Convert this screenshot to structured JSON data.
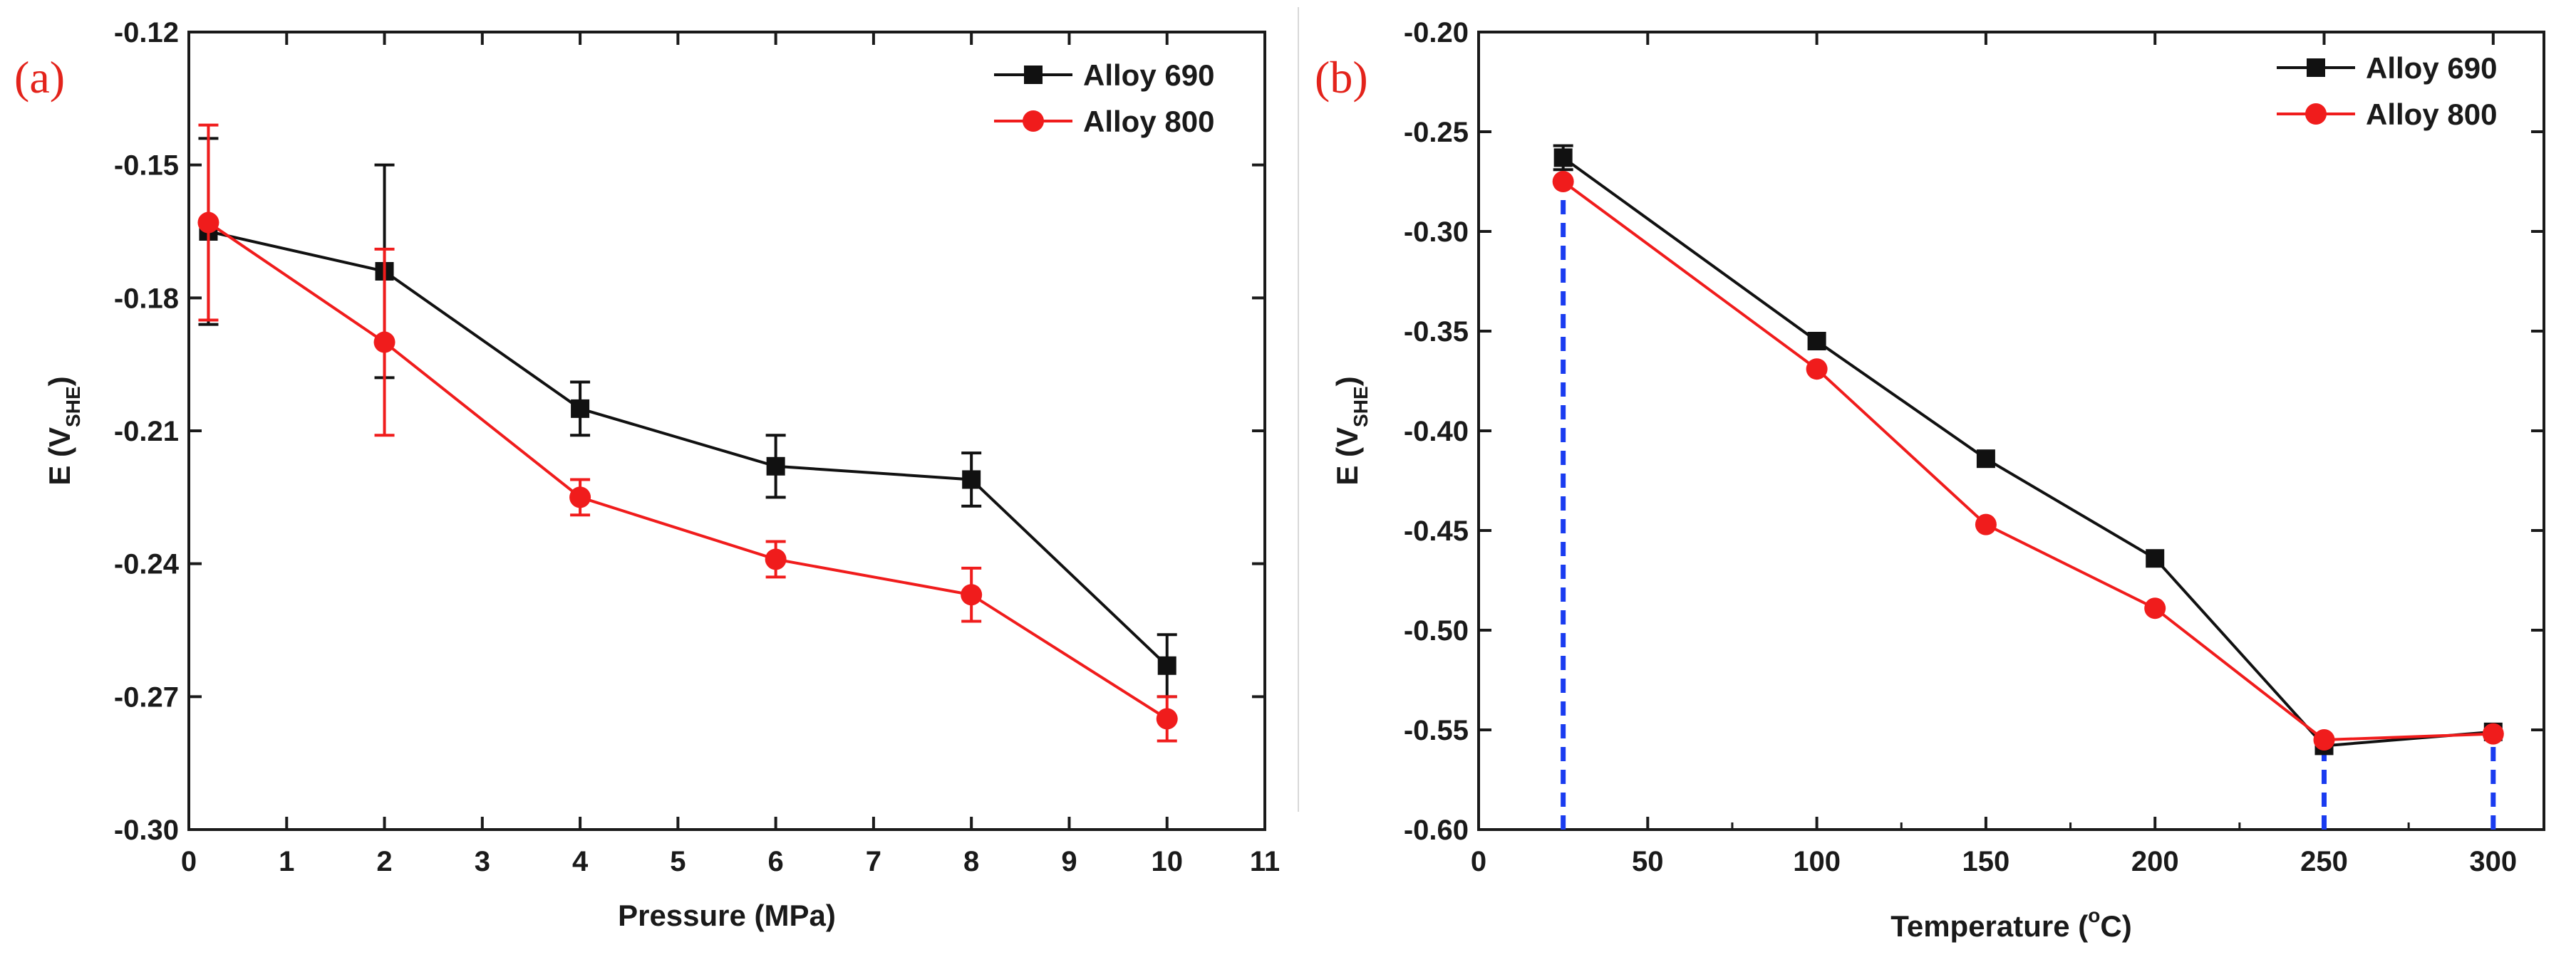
{
  "colors": {
    "alloy690": "#111111",
    "alloy800": "#f01c1c",
    "guide": "#1a3cf0",
    "axis": "#1a1a1a"
  },
  "chart_data": [
    {
      "type": "line",
      "panel_label": "(a)",
      "xlabel": "Pressure (MPa)",
      "ylabel": {
        "main": "E (V",
        "sub": "SHE",
        "close": ")"
      },
      "xlim": [
        0,
        11
      ],
      "ylim": [
        -0.3,
        -0.12
      ],
      "x_ticks": [
        0,
        1,
        2,
        3,
        4,
        5,
        6,
        7,
        8,
        9,
        10,
        11
      ],
      "x_tick_labels": [
        "0",
        "1",
        "2",
        "3",
        "4",
        "5",
        "6",
        "7",
        "8",
        "9",
        "10",
        "11"
      ],
      "y_ticks": [
        -0.3,
        -0.27,
        -0.24,
        -0.21,
        -0.18,
        -0.15,
        -0.12
      ],
      "y_tick_labels": [
        "-0.30",
        "-0.27",
        "-0.24",
        "-0.21",
        "-0.18",
        "-0.15",
        "-0.12"
      ],
      "legend_position": "top-right",
      "series": [
        {
          "name": "Alloy 690",
          "marker": "square",
          "x": [
            0.2,
            2,
            4,
            6,
            8,
            10
          ],
          "y": [
            -0.165,
            -0.174,
            -0.205,
            -0.218,
            -0.221,
            -0.263
          ],
          "err": [
            0.021,
            0.024,
            0.006,
            0.007,
            0.006,
            0.007
          ]
        },
        {
          "name": "Alloy 800",
          "marker": "circle",
          "x": [
            0.2,
            2,
            4,
            6,
            8,
            10
          ],
          "y": [
            -0.163,
            -0.19,
            -0.225,
            -0.239,
            -0.247,
            -0.275
          ],
          "err": [
            0.022,
            0.021,
            0.004,
            0.004,
            0.006,
            0.005
          ]
        }
      ],
      "guides": []
    },
    {
      "type": "line",
      "panel_label": "(b)",
      "xlabel": {
        "main": "Temperature (",
        "sup": "o",
        "close": "C)"
      },
      "ylabel": {
        "main": "E (V",
        "sub": "SHE",
        "close": ")"
      },
      "xlim": [
        0,
        315
      ],
      "ylim": [
        -0.6,
        -0.2
      ],
      "x_ticks": [
        0,
        50,
        100,
        150,
        200,
        250,
        300
      ],
      "x_tick_labels": [
        "0",
        "50",
        "100",
        "150",
        "200",
        "250",
        "300"
      ],
      "y_ticks": [
        -0.6,
        -0.55,
        -0.5,
        -0.45,
        -0.4,
        -0.35,
        -0.3,
        -0.25,
        -0.2
      ],
      "y_tick_labels": [
        "-0.60",
        "-0.55",
        "-0.50",
        "-0.45",
        "-0.40",
        "-0.35",
        "-0.30",
        "-0.25",
        "-0.20"
      ],
      "legend_position": "top-right",
      "series": [
        {
          "name": "Alloy 690",
          "marker": "square",
          "x": [
            25,
            100,
            150,
            200,
            250,
            300
          ],
          "y": [
            -0.263,
            -0.355,
            -0.414,
            -0.464,
            -0.558,
            -0.551
          ],
          "err": [
            0.006,
            0,
            0,
            0,
            0,
            0
          ]
        },
        {
          "name": "Alloy 800",
          "marker": "circle",
          "x": [
            25,
            100,
            150,
            200,
            250,
            300
          ],
          "y": [
            -0.275,
            -0.369,
            -0.447,
            -0.489,
            -0.555,
            -0.552
          ],
          "err": [
            0,
            0,
            0,
            0,
            0,
            0
          ]
        }
      ],
      "guides": [
        {
          "x": 25,
          "y": -0.275
        },
        {
          "x": 250,
          "y": -0.555
        },
        {
          "x": 300,
          "y": -0.552
        }
      ]
    }
  ]
}
